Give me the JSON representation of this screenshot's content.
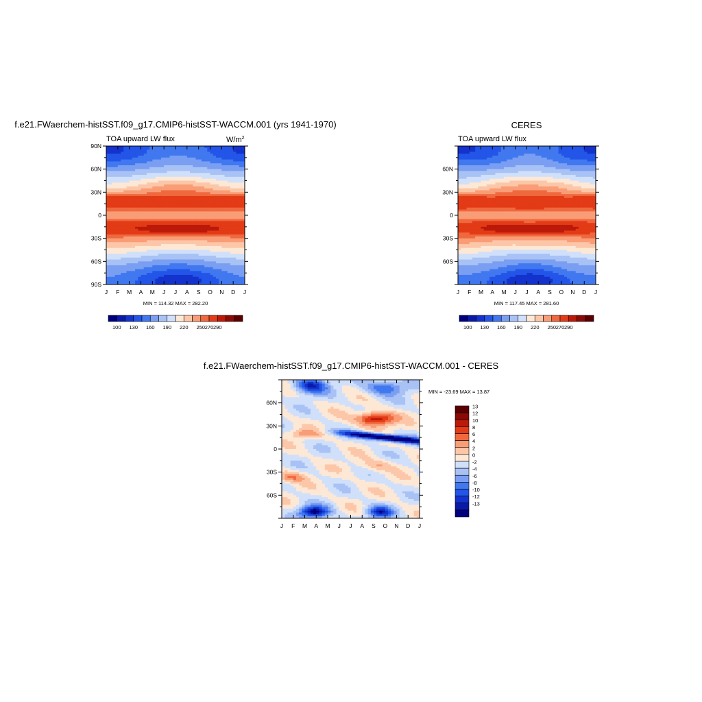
{
  "chart_data": [
    {
      "type": "heatmap",
      "title": "f.e21.FWaerchem-histSST.f09_g17.CMIP6-histSST-WACCM.001 (yrs 1941-1970)",
      "subtitle_left": "TOA upward LW flux",
      "units_base": "W/m",
      "units_exp": "2",
      "x_ticks": [
        "J",
        "F",
        "M",
        "A",
        "M",
        "J",
        "J",
        "A",
        "S",
        "O",
        "N",
        "D",
        "J"
      ],
      "y_ticks": [
        "90N",
        "60N",
        "30N",
        "0",
        "30S",
        "60S",
        "90S"
      ],
      "y_tick_values": [
        90,
        60,
        30,
        0,
        -30,
        -60,
        -90
      ],
      "ylim": [
        -90,
        90
      ],
      "stats": "MIN = 114.32 MAX = 282.20",
      "min": 114.32,
      "max": 282.2,
      "colorbar": {
        "levels": [
          100,
          115,
          130,
          145,
          160,
          175,
          190,
          205,
          220,
          235,
          250,
          260,
          270,
          280,
          290
        ],
        "labels": [
          "100",
          "130",
          "160",
          "190",
          "220",
          "250",
          "270",
          "290"
        ],
        "colors": [
          "#00007f",
          "#0a1aa8",
          "#1432cc",
          "#2255e8",
          "#4178f0",
          "#7a9ef2",
          "#a8c2f5",
          "#d0e0fa",
          "#fde8d6",
          "#fcc7a8",
          "#f99d77",
          "#f0683e",
          "#e33b17",
          "#bb1a0a",
          "#8a0a05",
          "#5a0000"
        ]
      }
    },
    {
      "type": "heatmap",
      "title": "CERES",
      "subtitle_left": "TOA upward LW flux",
      "x_ticks": [
        "J",
        "F",
        "M",
        "A",
        "M",
        "J",
        "J",
        "A",
        "S",
        "O",
        "N",
        "D",
        "J"
      ],
      "y_ticks": [
        "60N",
        "30N",
        "0",
        "30S",
        "60S"
      ],
      "y_tick_values": [
        60,
        30,
        0,
        -30,
        -60
      ],
      "ylim": [
        -90,
        90
      ],
      "stats": "MIN = 117.45 MAX = 281.60",
      "min": 117.45,
      "max": 281.6,
      "colorbar": {
        "labels": [
          "100",
          "130",
          "160",
          "190",
          "220",
          "250",
          "270",
          "290"
        ]
      }
    },
    {
      "type": "heatmap",
      "title": "f.e21.FWaerchem-histSST.f09_g17.CMIP6-histSST-WACCM.001 - CERES",
      "x_ticks": [
        "J",
        "F",
        "M",
        "A",
        "M",
        "J",
        "J",
        "A",
        "S",
        "O",
        "N",
        "D",
        "J"
      ],
      "y_ticks": [
        "60N",
        "30N",
        "0",
        "30S",
        "60S"
      ],
      "y_tick_values": [
        60,
        30,
        0,
        -30,
        -60
      ],
      "ylim": [
        -90,
        90
      ],
      "stats": "MIN = -23.69 MAX =  13.87",
      "min": -23.69,
      "max": 13.87,
      "colorbar": {
        "levels": [
          -13,
          -12,
          -10,
          -8,
          -6,
          -4,
          -2,
          0,
          2,
          4,
          6,
          8,
          10,
          12,
          13
        ],
        "labels": [
          "13",
          "12",
          "10",
          "8",
          "6",
          "4",
          "2",
          "0",
          "-2",
          "-4",
          "-6",
          "-8",
          "-10",
          "-12",
          "-13"
        ],
        "colors": [
          "#00007f",
          "#0a1aa8",
          "#1432cc",
          "#2255e8",
          "#4178f0",
          "#7a9ef2",
          "#a8c2f5",
          "#d0e0fa",
          "#fde8d6",
          "#fcc7a8",
          "#f99d77",
          "#f0683e",
          "#e33b17",
          "#bb1a0a",
          "#8a0a05",
          "#5a0000"
        ]
      }
    }
  ]
}
